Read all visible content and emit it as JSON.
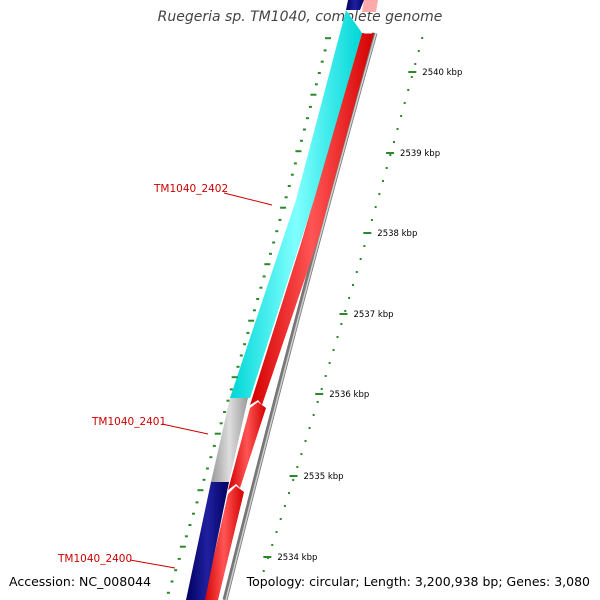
{
  "title": "Ruegeria sp. TM1040, complete genome",
  "accession": "Accession: NC_008044",
  "summary": "Topology: circular; Length: 3,200,938 bp; Genes: 3,080",
  "gene_labels": [
    {
      "text": "TM1040_2402"
    },
    {
      "text": "TM1040_2401"
    },
    {
      "text": "TM1040_2400"
    }
  ],
  "scale_labels": [
    "2540 kbp",
    "2539 kbp",
    "2538 kbp",
    "2537 kbp",
    "2536 kbp",
    "2535 kbp",
    "2534 kbp"
  ],
  "colors": {
    "cds": "#ff0000",
    "gene_2402": "#00ffff",
    "gene_2401": "#bbbbbb",
    "gene_2400": "#000080",
    "ticks": "#2a8a2a",
    "label_text": "#cc0000",
    "backbone": "#888888"
  }
}
